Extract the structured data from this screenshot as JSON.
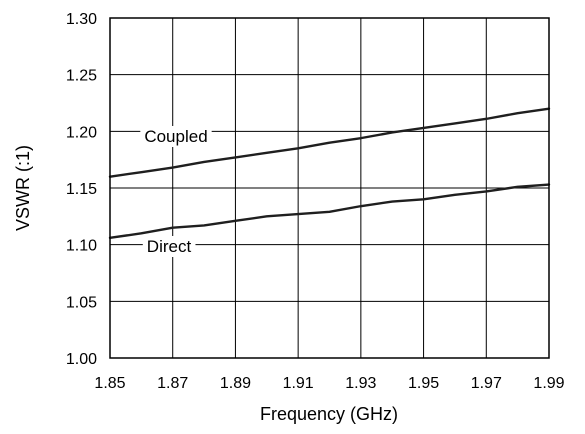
{
  "chart_data": {
    "type": "line",
    "title": "",
    "xlabel": "Frequency (GHz)",
    "ylabel": "VSWR (:1)",
    "xlim": [
      1.85,
      1.99
    ],
    "ylim": [
      1.0,
      1.3
    ],
    "xticks": [
      "1.85",
      "1.87",
      "1.89",
      "1.91",
      "1.93",
      "1.95",
      "1.97",
      "1.99"
    ],
    "yticks": [
      "1.00",
      "1.05",
      "1.10",
      "1.15",
      "1.20",
      "1.25",
      "1.30"
    ],
    "grid": true,
    "legend": "none",
    "series": [
      {
        "name": "Coupled",
        "x": [
          1.85,
          1.86,
          1.87,
          1.88,
          1.89,
          1.9,
          1.91,
          1.92,
          1.93,
          1.94,
          1.95,
          1.96,
          1.97,
          1.98,
          1.99
        ],
        "values": [
          1.16,
          1.164,
          1.168,
          1.173,
          1.177,
          1.181,
          1.185,
          1.19,
          1.194,
          1.199,
          1.203,
          1.207,
          1.211,
          1.216,
          1.22
        ]
      },
      {
        "name": "Direct",
        "x": [
          1.85,
          1.86,
          1.87,
          1.88,
          1.89,
          1.9,
          1.91,
          1.92,
          1.93,
          1.94,
          1.95,
          1.96,
          1.97,
          1.98,
          1.99
        ],
        "values": [
          1.106,
          1.11,
          1.115,
          1.117,
          1.121,
          1.125,
          1.127,
          1.129,
          1.134,
          1.138,
          1.14,
          1.144,
          1.147,
          1.151,
          1.153
        ]
      }
    ]
  }
}
